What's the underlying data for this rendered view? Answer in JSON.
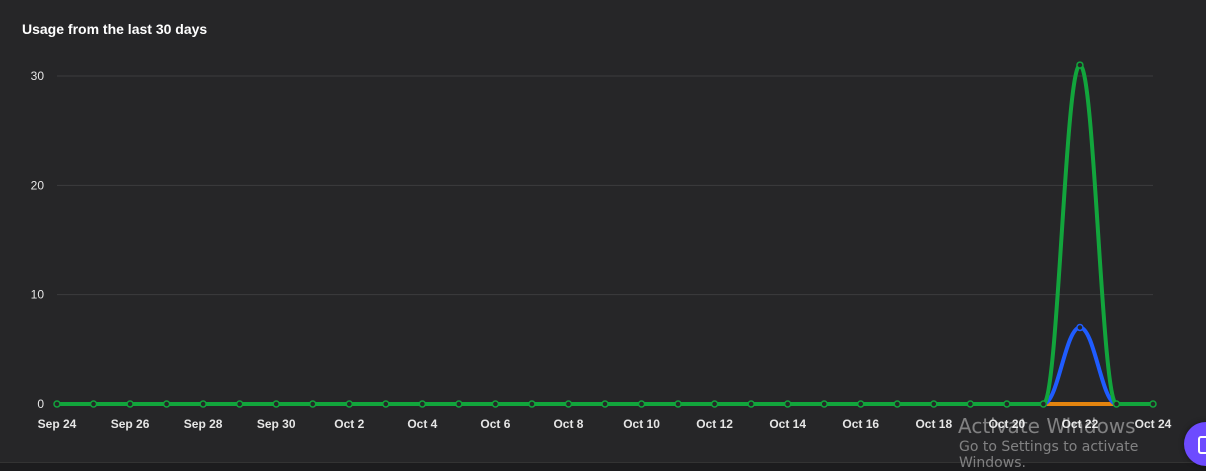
{
  "watermark": {
    "line1": "Activate Windows",
    "line2": "Go to Settings to activate Windows."
  },
  "chart_data": {
    "type": "line",
    "title": "Usage from the last 30 days",
    "xlabel": "",
    "ylabel": "",
    "ylim": [
      0,
      32
    ],
    "yticks": [
      0,
      10,
      20,
      30
    ],
    "grid": true,
    "x": [
      "Sep 24",
      "Sep 25",
      "Sep 26",
      "Sep 27",
      "Sep 28",
      "Sep 29",
      "Sep 30",
      "Oct 1",
      "Oct 2",
      "Oct 3",
      "Oct 4",
      "Oct 5",
      "Oct 6",
      "Oct 7",
      "Oct 8",
      "Oct 9",
      "Oct 10",
      "Oct 11",
      "Oct 12",
      "Oct 13",
      "Oct 14",
      "Oct 15",
      "Oct 16",
      "Oct 17",
      "Oct 18",
      "Oct 19",
      "Oct 20",
      "Oct 21",
      "Oct 22",
      "Oct 23",
      "Oct 24"
    ],
    "x_tick_labels": [
      "Sep 24",
      "Sep 26",
      "Sep 28",
      "Sep 30",
      "Oct 2",
      "Oct 4",
      "Oct 6",
      "Oct 8",
      "Oct 10",
      "Oct 12",
      "Oct 14",
      "Oct 16",
      "Oct 18",
      "Oct 20",
      "Oct 22",
      "Oct 24"
    ],
    "series": [
      {
        "name": "orange",
        "color": "#e3840f",
        "values": [
          0,
          0,
          0,
          0,
          0,
          0,
          0,
          0,
          0,
          0,
          0,
          0,
          0,
          0,
          0,
          0,
          0,
          0,
          0,
          0,
          0,
          0,
          0,
          0,
          0,
          0,
          0,
          0,
          0,
          0,
          0
        ]
      },
      {
        "name": "blue",
        "color": "#1f5cff",
        "values": [
          0,
          0,
          0,
          0,
          0,
          0,
          0,
          0,
          0,
          0,
          0,
          0,
          0,
          0,
          0,
          0,
          0,
          0,
          0,
          0,
          0,
          0,
          0,
          0,
          0,
          0,
          0,
          0,
          7,
          0,
          0
        ]
      },
      {
        "name": "green",
        "color": "#12a53c",
        "values": [
          0,
          0,
          0,
          0,
          0,
          0,
          0,
          0,
          0,
          0,
          0,
          0,
          0,
          0,
          0,
          0,
          0,
          0,
          0,
          0,
          0,
          0,
          0,
          0,
          0,
          0,
          0,
          0,
          31,
          0,
          0
        ]
      }
    ]
  }
}
